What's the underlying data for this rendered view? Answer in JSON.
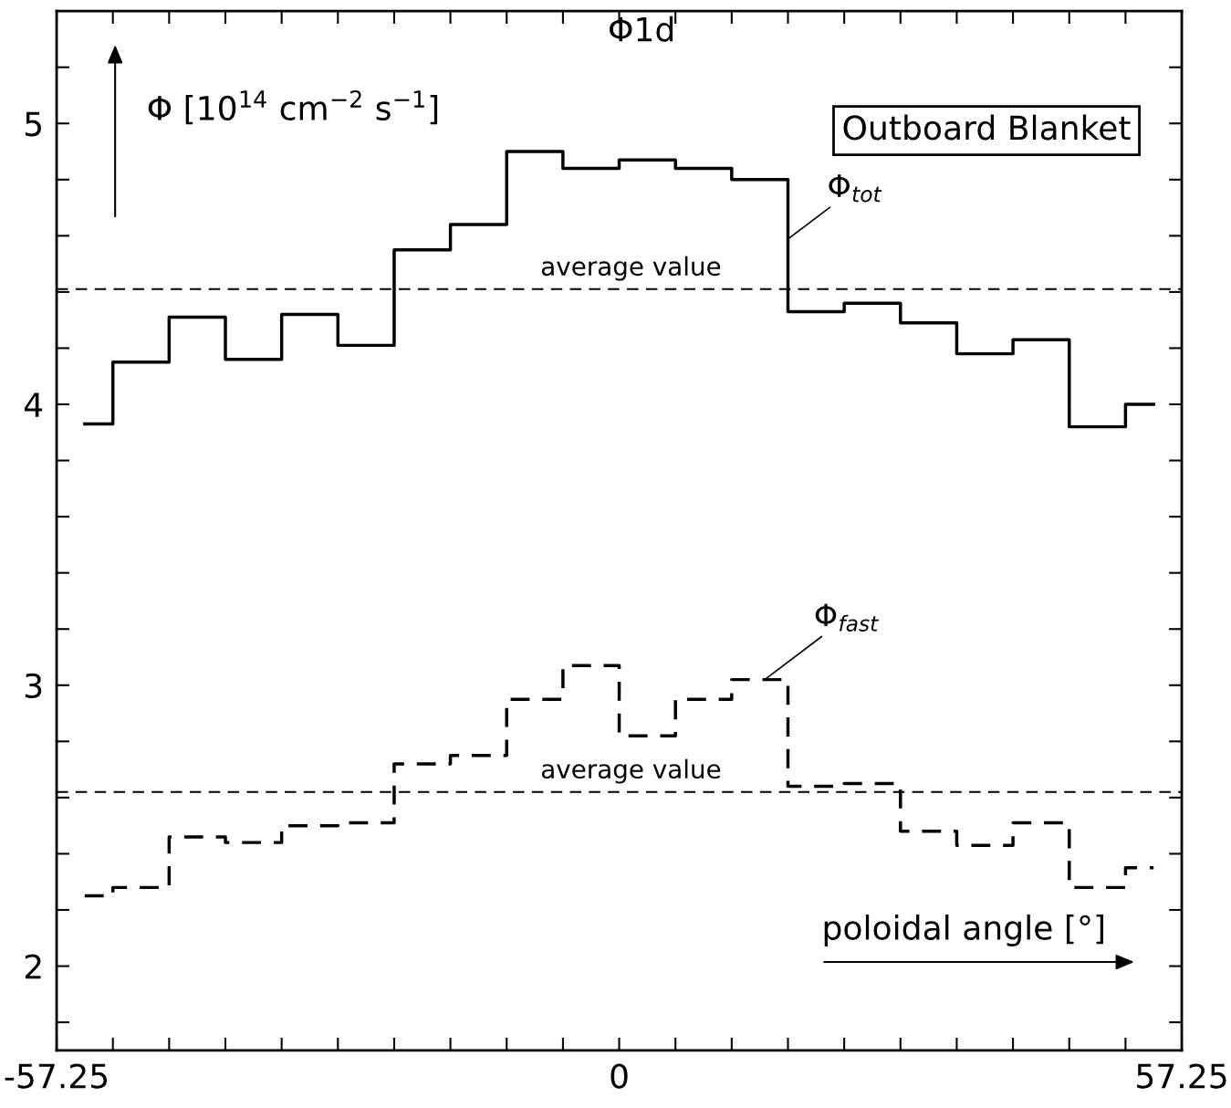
{
  "chart_data": {
    "type": "step",
    "title": "Φ1d",
    "xlabel": "poloidal angle [°]",
    "ylabel": "Φ [10$^{14}$ cm$^{−2}$ s$^{−1}$]",
    "x": [
      -54.3875,
      -48.6625,
      -42.9375,
      -37.2125,
      -31.4875,
      -25.7625,
      -20.0375,
      -14.3125,
      -8.5875,
      -2.8625,
      2.8625,
      8.5875,
      14.3125,
      20.0375,
      25.7625,
      31.4875,
      37.2125,
      42.9375,
      48.6625,
      54.3875
    ],
    "series": [
      {
        "name": "Φ$_{tot}$",
        "color": "#000000",
        "line_style": "solid",
        "values": [
          3.93,
          4.15,
          4.31,
          4.16,
          4.32,
          4.21,
          4.55,
          4.64,
          4.9,
          4.84,
          4.87,
          4.84,
          4.8,
          4.33,
          4.36,
          4.29,
          4.18,
          4.23,
          3.92,
          4.0
        ]
      },
      {
        "name": "Φ$_{fast}$",
        "color": "#000000",
        "line_style": "dashed",
        "values": [
          2.25,
          2.28,
          2.46,
          2.44,
          2.5,
          2.51,
          2.72,
          2.75,
          2.95,
          3.07,
          2.82,
          2.95,
          3.02,
          2.64,
          2.65,
          2.48,
          2.43,
          2.51,
          2.28,
          2.35
        ]
      }
    ],
    "xlim": [
      -57.25,
      57.25
    ],
    "ylim": [
      1.7,
      5.4
    ],
    "xticks": [
      -57.25,
      {
        "value": -51.525,
        "label": null
      },
      {
        "value": -45.8,
        "label": null
      },
      {
        "value": -40.075,
        "label": null
      },
      {
        "value": -34.35,
        "label": null
      },
      {
        "value": -28.625,
        "label": null
      },
      {
        "value": -22.9,
        "label": null
      },
      {
        "value": -17.175,
        "label": null
      },
      {
        "value": -11.45,
        "label": null
      },
      {
        "value": -5.725,
        "label": null
      },
      0,
      {
        "value": 5.725,
        "label": null
      },
      {
        "value": 11.45,
        "label": null
      },
      {
        "value": 17.175,
        "label": null
      },
      {
        "value": 22.9,
        "label": null
      },
      {
        "value": 28.625,
        "label": null
      },
      {
        "value": 34.35,
        "label": null
      },
      {
        "value": 40.075,
        "label": null
      },
      {
        "value": 45.8,
        "label": null
      },
      {
        "value": 51.525,
        "label": null
      },
      57.25
    ],
    "yticks": [
      {
        "value": 1.8,
        "label": null
      },
      2,
      {
        "value": 2.2,
        "label": null
      },
      {
        "value": 2.4,
        "label": null
      },
      {
        "value": 2.6,
        "label": null
      },
      {
        "value": 2.8,
        "label": null
      },
      3,
      {
        "value": 3.2,
        "label": null
      },
      {
        "value": 3.4,
        "label": null
      },
      {
        "value": 3.6,
        "label": null
      },
      {
        "value": 3.8,
        "label": null
      },
      4,
      {
        "value": 4.2,
        "label": null
      },
      {
        "value": 4.4,
        "label": null
      },
      {
        "value": 4.6,
        "label": null
      },
      {
        "value": 4.8,
        "label": null
      },
      5,
      {
        "value": 5.2,
        "label": null
      }
    ],
    "ref_lines": [
      {
        "axis": "y",
        "value": 4.41,
        "label": "average value",
        "line_style": "dashed",
        "color": "#000000"
      },
      {
        "axis": "y",
        "value": 2.62,
        "label": "average value",
        "line_style": "dashed",
        "color": "#000000"
      }
    ],
    "annotations": [
      "Outboard Blanket"
    ]
  }
}
